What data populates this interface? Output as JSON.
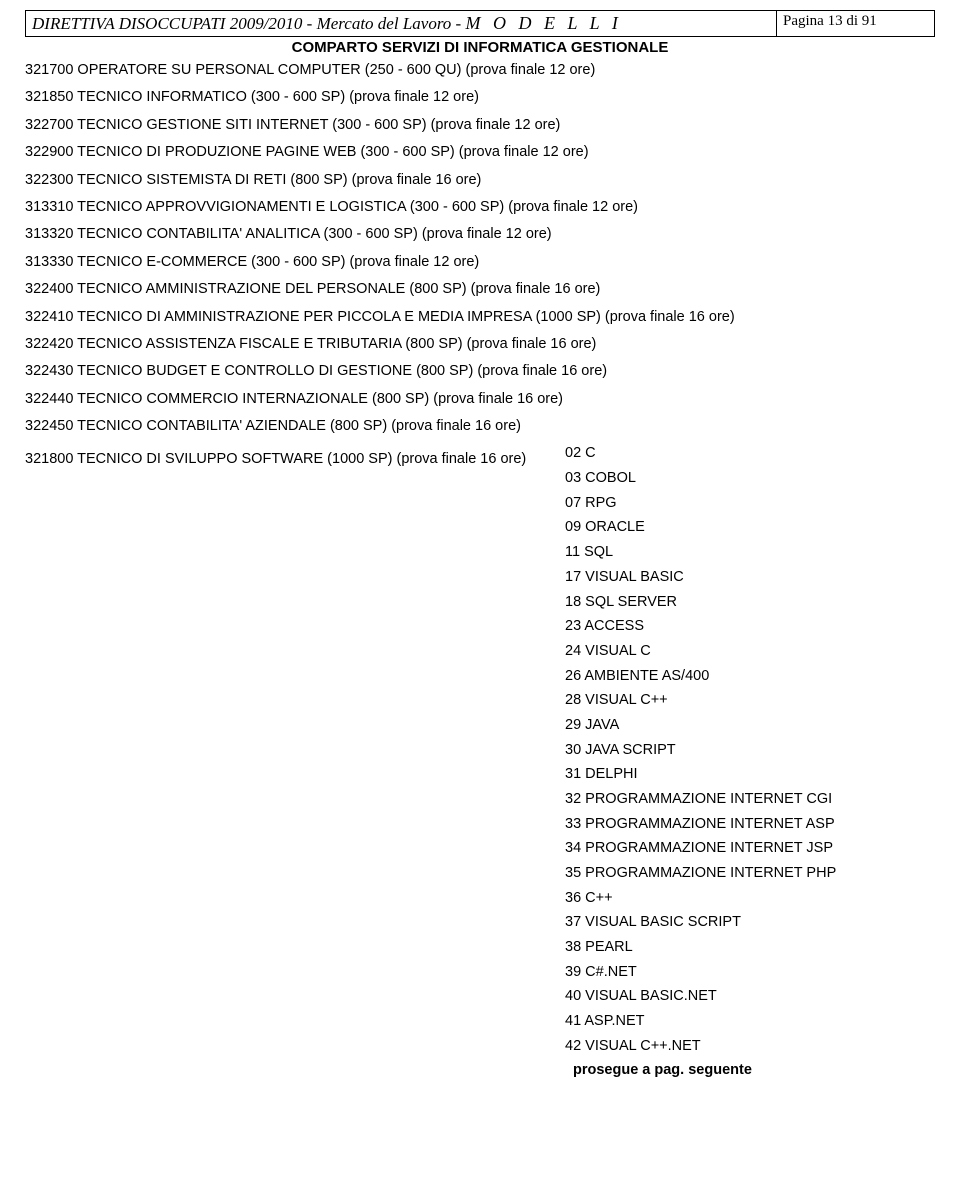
{
  "header": {
    "title_prefix": "DIRETTIVA DISOCCUPATI 2009/2010 - Mercato del Lavoro - ",
    "title_suffix": "M O D E L L I",
    "page_label": "Pagina 13 di 91"
  },
  "section_title": "COMPARTO SERVIZI DI INFORMATICA GESTIONALE",
  "courses": [
    "321700 OPERATORE SU PERSONAL COMPUTER (250 - 600 QU) (prova finale 12 ore)",
    "321850 TECNICO INFORMATICO (300 - 600 SP) (prova finale 12 ore)",
    "322700 TECNICO GESTIONE SITI INTERNET (300 - 600 SP) (prova finale 12 ore)",
    "322900 TECNICO DI PRODUZIONE PAGINE WEB (300 - 600 SP) (prova finale 12 ore)",
    "322300 TECNICO SISTEMISTA DI RETI (800 SP) (prova finale 16 ore)",
    "313310 TECNICO APPROVVIGIONAMENTI E LOGISTICA (300 - 600 SP) (prova finale 12 ore)",
    "313320 TECNICO CONTABILITA' ANALITICA (300 - 600 SP) (prova finale 12 ore)",
    "313330 TECNICO E-COMMERCE (300 - 600 SP) (prova finale 12 ore)",
    "322400 TECNICO AMMINISTRAZIONE DEL PERSONALE (800 SP) (prova finale 16 ore)",
    "322410 TECNICO DI AMMINISTRAZIONE PER PICCOLA E MEDIA IMPRESA (1000 SP) (prova finale 16 ore)",
    "322420 TECNICO ASSISTENZA FISCALE E TRIBUTARIA (800 SP) (prova finale 16 ore)",
    "322430 TECNICO BUDGET E CONTROLLO DI GESTIONE (800 SP) (prova finale 16 ore)",
    "322440 TECNICO COMMERCIO INTERNAZIONALE (800 SP) (prova finale 16 ore)",
    "322450 TECNICO CONTABILITA' AZIENDALE (800 SP) (prova finale 16 ore)"
  ],
  "last_course": "321800 TECNICO DI SVILUPPO SOFTWARE (1000 SP) (prova finale 16 ore)",
  "sub_items": [
    "02 C",
    "03 COBOL",
    "07 RPG",
    "09 ORACLE",
    "11 SQL",
    "17 VISUAL BASIC",
    "18 SQL SERVER",
    "23 ACCESS",
    "24 VISUAL C",
    "26 AMBIENTE AS/400",
    "28 VISUAL C++",
    "29 JAVA",
    "30 JAVA SCRIPT",
    "31 DELPHI",
    "32 PROGRAMMAZIONE INTERNET CGI",
    "33 PROGRAMMAZIONE INTERNET ASP",
    "34 PROGRAMMAZIONE INTERNET JSP",
    "35 PROGRAMMAZIONE INTERNET PHP",
    "36 C++",
    "37 VISUAL BASIC SCRIPT",
    "38 PEARL",
    "39 C#.NET",
    "40 VISUAL BASIC.NET",
    "41 ASP.NET",
    "42 VISUAL C++.NET"
  ],
  "footer_note": "prosegue a pag. seguente"
}
